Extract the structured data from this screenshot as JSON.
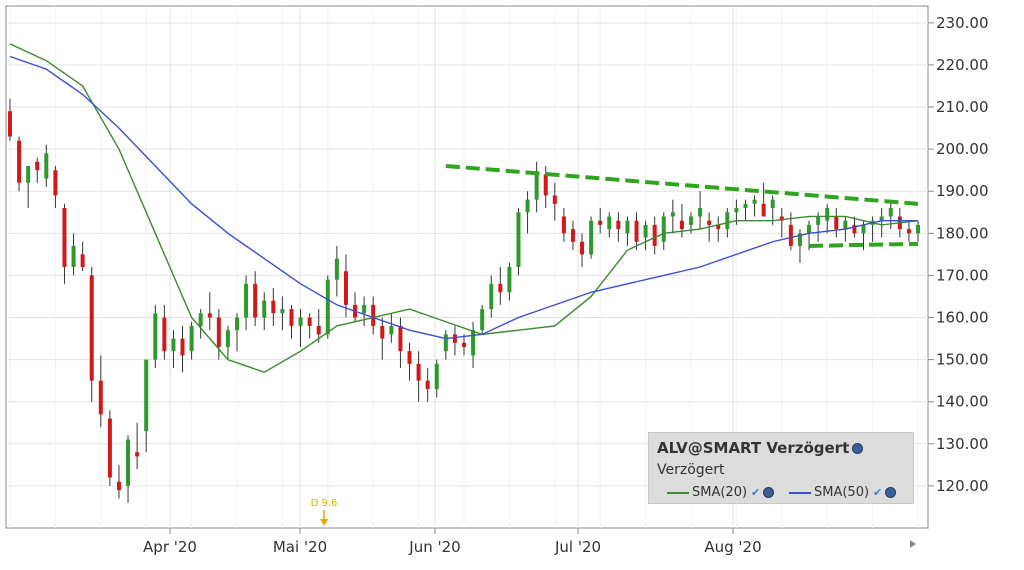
{
  "chart_data": {
    "type": "candlestick",
    "y_ticks": [
      "230.00",
      "220.00",
      "210.00",
      "200.00",
      "190.00",
      "180.00",
      "170.00",
      "160.00",
      "150.00",
      "140.00",
      "130.00",
      "120.00"
    ],
    "ylim": [
      110,
      234
    ],
    "x_ticks": [
      "Apr '20",
      "Mai '20",
      "Jun '20",
      "Jul '20",
      "Aug '20"
    ],
    "annotation": "D 9.6",
    "candles": [
      [
        209,
        212,
        202,
        203
      ],
      [
        202,
        203,
        190,
        192
      ],
      [
        192,
        195,
        186,
        196
      ],
      [
        197,
        198,
        192,
        195
      ],
      [
        193,
        201,
        191,
        199
      ],
      [
        195,
        196,
        186,
        189
      ],
      [
        186,
        187,
        168,
        172
      ],
      [
        172,
        180,
        170,
        177
      ],
      [
        175,
        178,
        171,
        172
      ],
      [
        170,
        172,
        140,
        145
      ],
      [
        145,
        151,
        134,
        137
      ],
      [
        136,
        138,
        120,
        122
      ],
      [
        121,
        125,
        117,
        119
      ],
      [
        120,
        132,
        116,
        131
      ],
      [
        128,
        135,
        124,
        127
      ],
      [
        133,
        150,
        128,
        150
      ],
      [
        150,
        163,
        148,
        161
      ],
      [
        160,
        163,
        150,
        152
      ],
      [
        152,
        157,
        148,
        155
      ],
      [
        155,
        158,
        147,
        151
      ],
      [
        152,
        159,
        150,
        158
      ],
      [
        158,
        162,
        155,
        161
      ],
      [
        161,
        166,
        157,
        160
      ],
      [
        160,
        162,
        150,
        153
      ],
      [
        153,
        158,
        150,
        157
      ],
      [
        157,
        161,
        152,
        160
      ],
      [
        160,
        170,
        157,
        168
      ],
      [
        168,
        171,
        158,
        160
      ],
      [
        160,
        166,
        157,
        164
      ],
      [
        164,
        167,
        158,
        161
      ],
      [
        161,
        165,
        157,
        162
      ],
      [
        162,
        163,
        155,
        158
      ],
      [
        158,
        162,
        153,
        160
      ],
      [
        160,
        161,
        155,
        158
      ],
      [
        158,
        162,
        154,
        156
      ],
      [
        156,
        170,
        155,
        169
      ],
      [
        169,
        177,
        165,
        174
      ],
      [
        171,
        175,
        160,
        163
      ],
      [
        163,
        166,
        159,
        160
      ],
      [
        161,
        165,
        158,
        163
      ],
      [
        163,
        165,
        156,
        158
      ],
      [
        158,
        160,
        150,
        155
      ],
      [
        156,
        161,
        154,
        158
      ],
      [
        158,
        160,
        148,
        152
      ],
      [
        152,
        154,
        145,
        149
      ],
      [
        149,
        152,
        140,
        145
      ],
      [
        145,
        148,
        140,
        143
      ],
      [
        143,
        150,
        141,
        149
      ],
      [
        152,
        157,
        150,
        156
      ],
      [
        156,
        158,
        151,
        154
      ],
      [
        154,
        156,
        151,
        153
      ],
      [
        151,
        159,
        148,
        157
      ],
      [
        157,
        163,
        156,
        162
      ],
      [
        162,
        170,
        160,
        168
      ],
      [
        168,
        172,
        163,
        166
      ],
      [
        166,
        173,
        164,
        172
      ],
      [
        172,
        186,
        170,
        185
      ],
      [
        185,
        190,
        180,
        188
      ],
      [
        188,
        197,
        185,
        194
      ],
      [
        194,
        196,
        186,
        189
      ],
      [
        189,
        192,
        183,
        187
      ],
      [
        184,
        186,
        178,
        180
      ],
      [
        181,
        183,
        176,
        178
      ],
      [
        178,
        180,
        172,
        175
      ],
      [
        175,
        184,
        174,
        183
      ],
      [
        183,
        186,
        180,
        182
      ],
      [
        181,
        185,
        179,
        184
      ],
      [
        183,
        185,
        178,
        181
      ],
      [
        180,
        184,
        177,
        183
      ],
      [
        183,
        185,
        176,
        178
      ],
      [
        179,
        183,
        176,
        182
      ],
      [
        182,
        184,
        175,
        177
      ],
      [
        178,
        185,
        176,
        184
      ],
      [
        184,
        188,
        180,
        185
      ],
      [
        183,
        187,
        179,
        181
      ],
      [
        182,
        185,
        180,
        184
      ],
      [
        184,
        190,
        181,
        186
      ],
      [
        183,
        185,
        178,
        182
      ],
      [
        182,
        184,
        178,
        181
      ],
      [
        181,
        186,
        179,
        185
      ],
      [
        185,
        188,
        182,
        186
      ],
      [
        186,
        188,
        183,
        187
      ],
      [
        187,
        189,
        184,
        188
      ],
      [
        187,
        192,
        185,
        184
      ],
      [
        186,
        189,
        182,
        188
      ],
      [
        184,
        186,
        179,
        183
      ],
      [
        182,
        185,
        176,
        177
      ],
      [
        177,
        181,
        173,
        180
      ],
      [
        180,
        183,
        176,
        182
      ],
      [
        182,
        185,
        178,
        184
      ],
      [
        183,
        187,
        180,
        186
      ],
      [
        184,
        186,
        179,
        181
      ],
      [
        181,
        184,
        178,
        183
      ],
      [
        182,
        184,
        179,
        180
      ],
      [
        180,
        183,
        176,
        182
      ],
      [
        182,
        184,
        178,
        183
      ],
      [
        183,
        186,
        179,
        184
      ],
      [
        184,
        188,
        181,
        186
      ],
      [
        184,
        186,
        179,
        181
      ],
      [
        181,
        183,
        178,
        180
      ],
      [
        180,
        183,
        178,
        182
      ]
    ],
    "series": [
      {
        "name": "SMA(20)",
        "color": "#3a8a2e",
        "points": [
          [
            0,
            225
          ],
          [
            4,
            221
          ],
          [
            8,
            215
          ],
          [
            12,
            200
          ],
          [
            16,
            180
          ],
          [
            20,
            160
          ],
          [
            24,
            150
          ],
          [
            28,
            147
          ],
          [
            32,
            152
          ],
          [
            36,
            158
          ],
          [
            40,
            160
          ],
          [
            44,
            162
          ],
          [
            48,
            159
          ],
          [
            52,
            156
          ],
          [
            56,
            157
          ],
          [
            60,
            158
          ],
          [
            64,
            165
          ],
          [
            68,
            176
          ],
          [
            72,
            180
          ],
          [
            76,
            181
          ],
          [
            80,
            183
          ],
          [
            84,
            183
          ],
          [
            88,
            184
          ],
          [
            92,
            184
          ],
          [
            96,
            182
          ],
          [
            100,
            183
          ]
        ]
      },
      {
        "name": "SMA(50)",
        "color": "#3a4fd0",
        "points": [
          [
            0,
            222
          ],
          [
            4,
            219
          ],
          [
            8,
            213
          ],
          [
            12,
            205
          ],
          [
            16,
            196
          ],
          [
            20,
            187
          ],
          [
            24,
            180
          ],
          [
            28,
            174
          ],
          [
            32,
            168
          ],
          [
            36,
            163
          ],
          [
            40,
            160
          ],
          [
            44,
            157
          ],
          [
            48,
            155
          ],
          [
            52,
            156
          ],
          [
            56,
            160
          ],
          [
            60,
            163
          ],
          [
            64,
            166
          ],
          [
            68,
            168
          ],
          [
            72,
            170
          ],
          [
            76,
            172
          ],
          [
            80,
            175
          ],
          [
            84,
            178
          ],
          [
            88,
            180
          ],
          [
            92,
            181
          ],
          [
            96,
            183
          ],
          [
            100,
            183
          ]
        ]
      }
    ],
    "trendlines": [
      {
        "style": "dashed",
        "color": "#2fa51f",
        "from": [
          48,
          196
        ],
        "to": [
          100,
          187
        ]
      },
      {
        "style": "dashed",
        "color": "#2fa51f",
        "from": [
          88,
          177
        ],
        "to": [
          100,
          177.5
        ]
      }
    ],
    "grid": true,
    "colors": {
      "up": "#2e9a2e",
      "down": "#d21818",
      "wick": "#333333"
    }
  },
  "legend": {
    "title": "ALV@SMART Verzögert",
    "subtitle": "Verzögert",
    "sma20": "SMA(20)",
    "sma50": "SMA(50)"
  }
}
